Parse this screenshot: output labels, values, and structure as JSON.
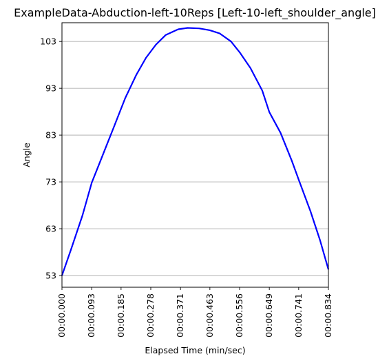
{
  "chart_data": {
    "type": "line",
    "title": "ExampleData-Abduction-left-10Reps [Left-10-left_shoulder_angle]",
    "xlabel": "Elapsed Time (min/sec)",
    "ylabel": "Angle",
    "xlim": [
      0,
      0.834
    ],
    "ylim": [
      50.5,
      107
    ],
    "yticks": [
      53,
      63,
      73,
      83,
      93,
      103
    ],
    "xtick_values": [
      0,
      0.093,
      0.185,
      0.278,
      0.371,
      0.463,
      0.556,
      0.649,
      0.741,
      0.834
    ],
    "xtick_labels": [
      "00:00.000",
      "00:00.093",
      "00:00.185",
      "00:00.278",
      "00:00.371",
      "00:00.463",
      "00:00.556",
      "00:00.649",
      "00:00.741",
      "00:00.834"
    ],
    "grid": "y-axis",
    "series": [
      {
        "color": "#0000ff",
        "x": [
          0,
          0.028,
          0.064,
          0.093,
          0.128,
          0.163,
          0.198,
          0.233,
          0.263,
          0.294,
          0.325,
          0.364,
          0.393,
          0.429,
          0.463,
          0.494,
          0.529,
          0.556,
          0.59,
          0.627,
          0.649,
          0.684,
          0.719,
          0.741,
          0.778,
          0.808,
          0.834
        ],
        "y": [
          53.0,
          58.5,
          65.8,
          72.8,
          78.8,
          84.8,
          90.9,
          95.9,
          99.5,
          102.3,
          104.4,
          105.6,
          105.9,
          105.8,
          105.4,
          104.7,
          103.0,
          100.7,
          97.3,
          92.5,
          87.9,
          83.5,
          77.6,
          73.5,
          66.7,
          60.5,
          54.3
        ]
      }
    ]
  }
}
